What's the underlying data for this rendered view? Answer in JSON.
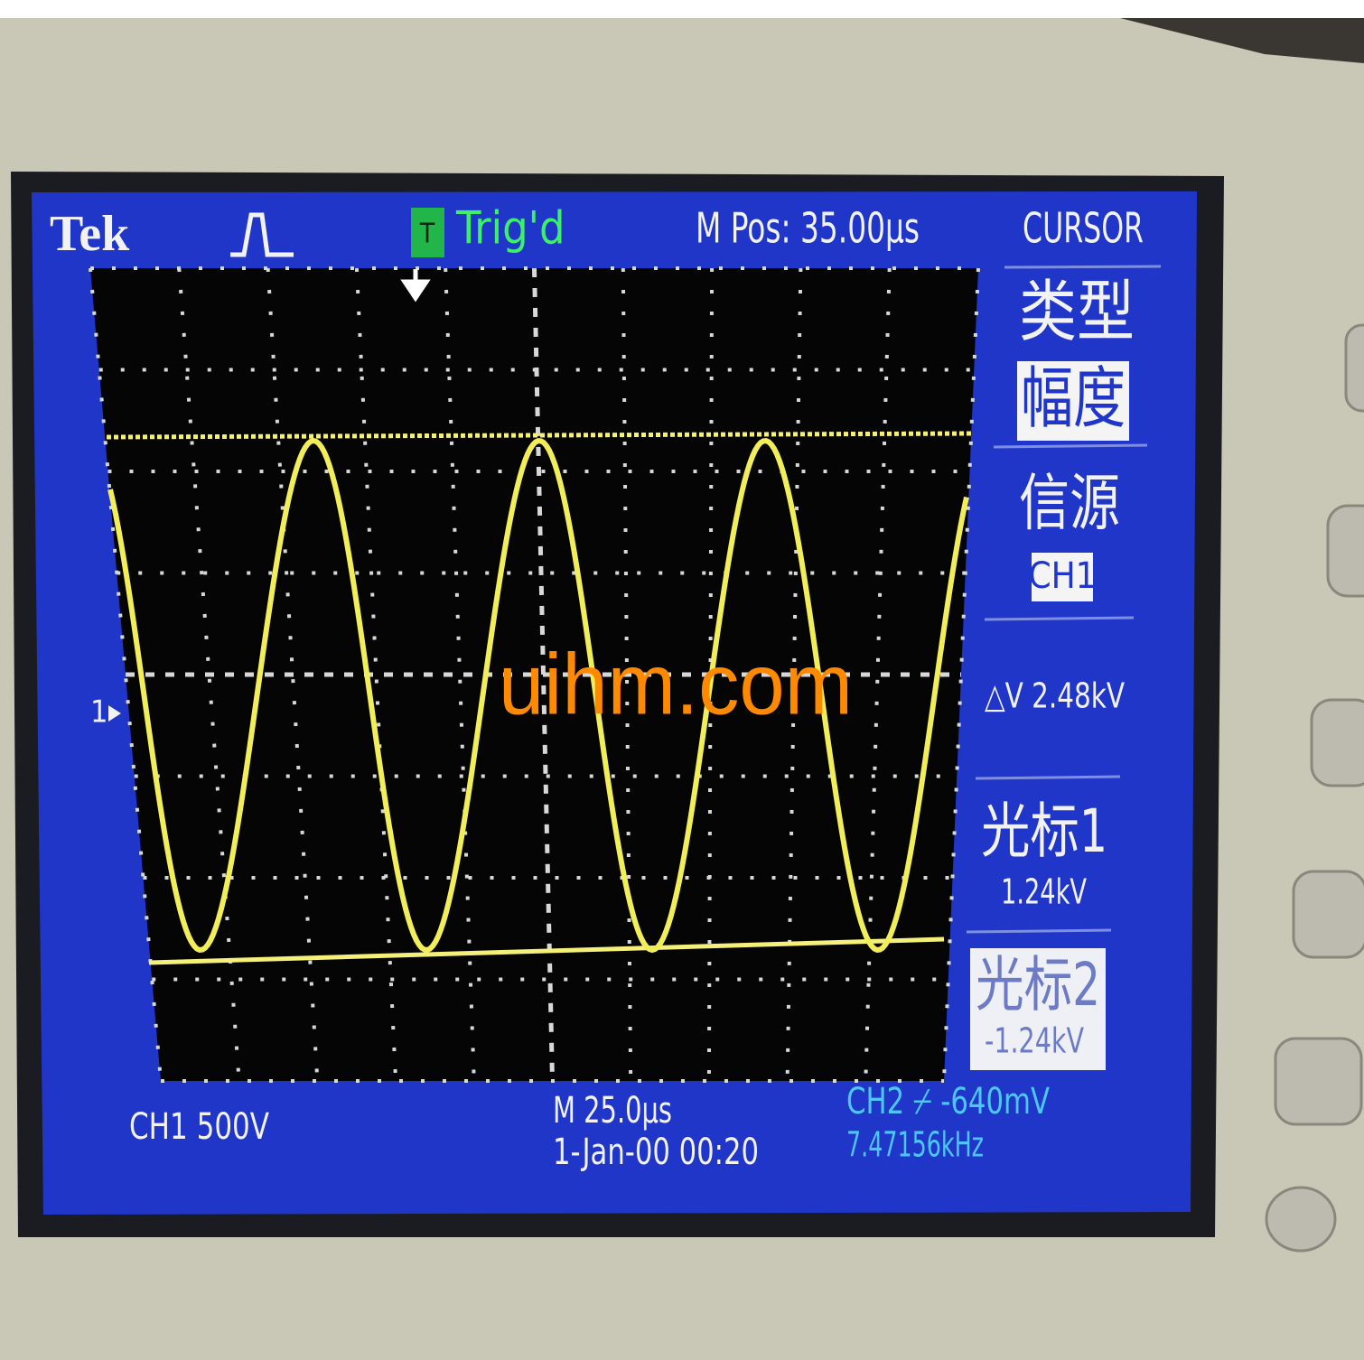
{
  "header": {
    "brand": "Tek",
    "trigger_icon": "T",
    "trigger_status": "Trig'd",
    "position": "M Pos: 35.00µs",
    "menu_title": "CURSOR"
  },
  "menu": {
    "type_label": "类型",
    "type_value": "幅度",
    "source_label": "信源",
    "source_value": "CH1",
    "delta": "△V 2.48kV",
    "cursor1_label": "光标1",
    "cursor1_value": "1.24kV",
    "cursor2_label": "光标2",
    "cursor2_value": "-1.24kV"
  },
  "footer": {
    "channel": "CH1  500V",
    "timebase": "M 25.0µs",
    "datetime": "1-Jan-00 00:20",
    "trigger": "CH2 ⌿ -640mV",
    "frequency": "7.47156kHz"
  },
  "marker": "1",
  "watermark": "uihm.com"
}
